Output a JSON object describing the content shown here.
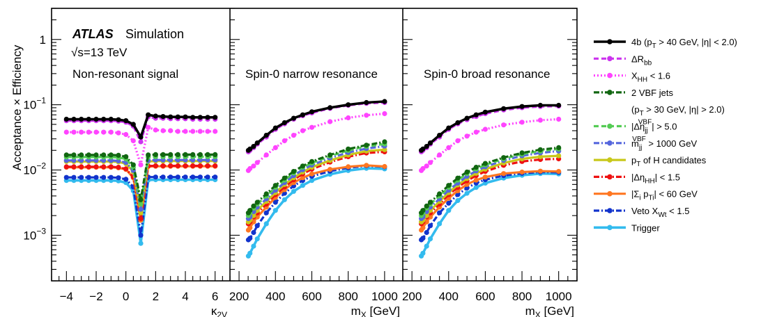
{
  "chart_data": {
    "type": "line",
    "ylabel": "Acceptance × Efficiency",
    "yscale": "log",
    "ylim": [
      0.0002,
      3
    ],
    "y_ticks": [
      {
        "value": 1,
        "label": "1"
      },
      {
        "value": 0.1,
        "label": "10⁻¹"
      },
      {
        "value": 0.01,
        "label": "10⁻²"
      },
      {
        "value": 0.001,
        "label": "10⁻³"
      }
    ],
    "annotations": {
      "atlas": "ATLAS",
      "simulation": "Simulation",
      "energy": "√s=13 TeV"
    },
    "panels": [
      {
        "title": "Non-resonant signal",
        "xlabel": "κ₂ᵥ",
        "xlim": [
          -5,
          7
        ],
        "x_ticks": [
          -4,
          -2,
          0,
          2,
          4,
          6
        ],
        "x_tick_labels": [
          "−4",
          "−2",
          "0",
          "2",
          "4",
          "6"
        ],
        "x": [
          -4,
          -3.5,
          -3,
          -2.5,
          -2,
          -1.5,
          -1,
          -0.5,
          0,
          0.5,
          1,
          1.5,
          2,
          2.5,
          3,
          3.5,
          4,
          4.5,
          5,
          5.5,
          6
        ],
        "series": [
          {
            "key": "4b",
            "values": [
              0.06,
              0.06,
              0.06,
              0.06,
              0.06,
              0.06,
              0.06,
              0.059,
              0.057,
              0.05,
              0.032,
              0.07,
              0.067,
              0.066,
              0.065,
              0.065,
              0.065,
              0.064,
              0.064,
              0.064,
              0.064
            ]
          },
          {
            "key": "drbb",
            "values": [
              0.057,
              0.057,
              0.057,
              0.057,
              0.057,
              0.057,
              0.057,
              0.056,
              0.054,
              0.047,
              0.027,
              0.065,
              0.062,
              0.062,
              0.061,
              0.061,
              0.061,
              0.06,
              0.06,
              0.06,
              0.06
            ]
          },
          {
            "key": "xhh",
            "values": [
              0.038,
              0.038,
              0.038,
              0.038,
              0.038,
              0.038,
              0.038,
              0.037,
              0.035,
              0.028,
              0.012,
              0.045,
              0.041,
              0.04,
              0.04,
              0.039,
              0.039,
              0.039,
              0.039,
              0.039,
              0.039
            ]
          },
          {
            "key": "vbf2",
            "values": [
              0.017,
              0.017,
              0.017,
              0.017,
              0.017,
              0.017,
              0.017,
              0.0168,
              0.016,
              0.012,
              0.0035,
              0.017,
              0.0172,
              0.0172,
              0.0172,
              0.0172,
              0.0172,
              0.0172,
              0.0172,
              0.0172,
              0.0172
            ]
          },
          {
            "key": "detajj",
            "values": [
              0.0158,
              0.0158,
              0.0158,
              0.0158,
              0.0158,
              0.0158,
              0.0158,
              0.0155,
              0.0148,
              0.011,
              0.003,
              0.0158,
              0.016,
              0.016,
              0.016,
              0.016,
              0.016,
              0.016,
              0.016,
              0.016,
              0.016
            ]
          },
          {
            "key": "mjj",
            "values": [
              0.014,
              0.014,
              0.014,
              0.014,
              0.014,
              0.014,
              0.014,
              0.0138,
              0.013,
              0.0098,
              0.0025,
              0.014,
              0.0142,
              0.0142,
              0.0142,
              0.0142,
              0.0142,
              0.0142,
              0.0142,
              0.0142,
              0.0142
            ]
          },
          {
            "key": "pth",
            "values": [
              0.0135,
              0.0135,
              0.0135,
              0.0135,
              0.0135,
              0.0135,
              0.0135,
              0.0133,
              0.0125,
              0.0094,
              0.0022,
              0.0135,
              0.0137,
              0.0137,
              0.0137,
              0.0137,
              0.0137,
              0.0137,
              0.0137,
              0.0137,
              0.0137
            ]
          },
          {
            "key": "detahh",
            "values": [
              0.0112,
              0.0112,
              0.0112,
              0.0112,
              0.0112,
              0.0112,
              0.0112,
              0.011,
              0.0104,
              0.0078,
              0.0018,
              0.0115,
              0.0116,
              0.0116,
              0.0116,
              0.0116,
              0.0116,
              0.0116,
              0.0116,
              0.0116,
              0.0116
            ]
          },
          {
            "key": "sumpt",
            "values": [
              0.011,
              0.011,
              0.011,
              0.011,
              0.011,
              0.011,
              0.011,
              0.0108,
              0.0102,
              0.0076,
              0.0017,
              0.0113,
              0.0114,
              0.0114,
              0.0114,
              0.0114,
              0.0114,
              0.0114,
              0.0114,
              0.0114,
              0.0114
            ]
          },
          {
            "key": "xwt",
            "values": [
              0.0077,
              0.0077,
              0.0077,
              0.0077,
              0.0077,
              0.0077,
              0.0077,
              0.0076,
              0.0072,
              0.0055,
              0.001,
              0.0078,
              0.0078,
              0.0078,
              0.0078,
              0.0078,
              0.0078,
              0.0078,
              0.0078,
              0.0078,
              0.0078
            ]
          },
          {
            "key": "trigger",
            "values": [
              0.0069,
              0.0069,
              0.0069,
              0.0069,
              0.0069,
              0.0069,
              0.0069,
              0.0068,
              0.0064,
              0.0048,
              0.00075,
              0.007,
              0.0071,
              0.0071,
              0.0071,
              0.0071,
              0.0071,
              0.0071,
              0.0071,
              0.0071,
              0.0071
            ]
          }
        ]
      },
      {
        "title": "Spin-0 narrow resonance",
        "xlabel": "mₓ [GeV]",
        "xlim": [
          150,
          1100
        ],
        "x_ticks": [
          200,
          400,
          600,
          800,
          1000
        ],
        "x_tick_labels": [
          "200",
          "400",
          "600",
          "800",
          "1000"
        ],
        "x": [
          251,
          260,
          280,
          300,
          350,
          400,
          450,
          500,
          550,
          600,
          700,
          800,
          900,
          1000
        ],
        "series": [
          {
            "key": "4b",
            "values": [
              0.02,
              0.021,
              0.023,
              0.026,
              0.034,
              0.044,
              0.053,
              0.062,
              0.07,
              0.078,
              0.09,
              0.1,
              0.108,
              0.112
            ]
          },
          {
            "key": "drbb",
            "values": [
              0.019,
              0.02,
              0.022,
              0.025,
              0.032,
              0.042,
              0.051,
              0.06,
              0.068,
              0.075,
              0.088,
              0.098,
              0.105,
              0.108
            ]
          },
          {
            "key": "xhh",
            "values": [
              0.0098,
              0.0105,
              0.0115,
              0.013,
              0.017,
              0.022,
              0.028,
              0.034,
              0.04,
              0.045,
              0.055,
              0.063,
              0.069,
              0.073
            ]
          },
          {
            "key": "vbf2",
            "values": [
              0.0022,
              0.0024,
              0.0028,
              0.0032,
              0.0043,
              0.0058,
              0.0075,
              0.0095,
              0.0115,
              0.0135,
              0.017,
              0.021,
              0.024,
              0.027
            ]
          },
          {
            "key": "detajj",
            "values": [
              0.002,
              0.0022,
              0.0026,
              0.003,
              0.004,
              0.0054,
              0.007,
              0.009,
              0.011,
              0.0128,
              0.0163,
              0.02,
              0.023,
              0.025
            ]
          },
          {
            "key": "mjj",
            "values": [
              0.0018,
              0.0019,
              0.0023,
              0.0027,
              0.0036,
              0.0049,
              0.0064,
              0.0082,
              0.0101,
              0.0119,
              0.0153,
              0.0185,
              0.0213,
              0.0232
            ]
          },
          {
            "key": "pth",
            "values": [
              0.0016,
              0.0017,
              0.002,
              0.0024,
              0.0033,
              0.0045,
              0.006,
              0.0076,
              0.0093,
              0.011,
              0.014,
              0.017,
              0.0195,
              0.0205
            ]
          },
          {
            "key": "detahh",
            "values": [
              0.0015,
              0.0016,
              0.0019,
              0.0022,
              0.003,
              0.0042,
              0.0055,
              0.0071,
              0.0087,
              0.0103,
              0.0132,
              0.016,
              0.0182,
              0.019
            ]
          },
          {
            "key": "sumpt",
            "values": [
              0.0012,
              0.0013,
              0.0016,
              0.0019,
              0.0027,
              0.0038,
              0.005,
              0.0064,
              0.0076,
              0.0087,
              0.0102,
              0.0112,
              0.0118,
              0.0113
            ]
          },
          {
            "key": "xwt",
            "values": [
              0.00085,
              0.0009,
              0.0011,
              0.0014,
              0.0022,
              0.0032,
              0.0044,
              0.0057,
              0.0069,
              0.008,
              0.0096,
              0.0108,
              0.0116,
              0.0112
            ]
          },
          {
            "key": "trigger",
            "values": [
              0.00048,
              0.00053,
              0.00068,
              0.00088,
              0.0015,
              0.0024,
              0.0035,
              0.0047,
              0.0058,
              0.0069,
              0.0086,
              0.0098,
              0.0106,
              0.0104
            ]
          }
        ]
      },
      {
        "title": "Spin-0 broad resonance",
        "xlabel": "mₓ [GeV]",
        "xlim": [
          150,
          1100
        ],
        "x_ticks": [
          200,
          400,
          600,
          800,
          1000
        ],
        "x_tick_labels": [
          "200",
          "400",
          "600",
          "800",
          "1000"
        ],
        "x": [
          251,
          260,
          280,
          300,
          350,
          400,
          450,
          500,
          550,
          600,
          700,
          800,
          900,
          1000
        ],
        "series": [
          {
            "key": "4b",
            "values": [
              0.02,
              0.021,
              0.023,
              0.026,
              0.034,
              0.044,
              0.053,
              0.062,
              0.07,
              0.077,
              0.087,
              0.094,
              0.098,
              0.098
            ]
          },
          {
            "key": "drbb",
            "values": [
              0.019,
              0.02,
              0.022,
              0.025,
              0.032,
              0.042,
              0.051,
              0.059,
              0.066,
              0.073,
              0.083,
              0.09,
              0.094,
              0.095
            ]
          },
          {
            "key": "xhh",
            "values": [
              0.0098,
              0.0105,
              0.0115,
              0.013,
              0.017,
              0.022,
              0.028,
              0.033,
              0.038,
              0.042,
              0.049,
              0.054,
              0.058,
              0.06
            ]
          },
          {
            "key": "vbf2",
            "values": [
              0.0022,
              0.0024,
              0.0028,
              0.0032,
              0.0043,
              0.0058,
              0.0075,
              0.0093,
              0.011,
              0.0126,
              0.0155,
              0.0183,
              0.0205,
              0.022
            ]
          },
          {
            "key": "detajj",
            "values": [
              0.002,
              0.0022,
              0.0026,
              0.003,
              0.004,
              0.0054,
              0.007,
              0.0088,
              0.0104,
              0.012,
              0.0148,
              0.0175,
              0.0195,
              0.021
            ]
          },
          {
            "key": "mjj",
            "values": [
              0.0018,
              0.0019,
              0.0023,
              0.0027,
              0.0036,
              0.0049,
              0.0063,
              0.008,
              0.0097,
              0.0112,
              0.014,
              0.0165,
              0.0183,
              0.0195
            ]
          },
          {
            "key": "pth",
            "values": [
              0.0016,
              0.0017,
              0.002,
              0.0024,
              0.0033,
              0.0045,
              0.0059,
              0.0074,
              0.0089,
              0.0103,
              0.0128,
              0.0148,
              0.016,
              0.0165
            ]
          },
          {
            "key": "detahh",
            "values": [
              0.0015,
              0.0016,
              0.0019,
              0.0022,
              0.003,
              0.0042,
              0.0054,
              0.0068,
              0.0082,
              0.0095,
              0.0118,
              0.0135,
              0.0145,
              0.0148
            ]
          },
          {
            "key": "sumpt",
            "values": [
              0.0012,
              0.0013,
              0.0016,
              0.0019,
              0.0027,
              0.0037,
              0.0048,
              0.006,
              0.007,
              0.0078,
              0.0088,
              0.0093,
              0.0096,
              0.0095
            ]
          },
          {
            "key": "xwt",
            "values": [
              0.00085,
              0.0009,
              0.0011,
              0.0014,
              0.0022,
              0.0031,
              0.0042,
              0.0053,
              0.0063,
              0.0071,
              0.0082,
              0.0089,
              0.0093,
              0.0092
            ]
          },
          {
            "key": "trigger",
            "values": [
              0.00048,
              0.00053,
              0.00068,
              0.00088,
              0.0015,
              0.0024,
              0.0034,
              0.0044,
              0.0054,
              0.0063,
              0.0075,
              0.0083,
              0.0088,
              0.0087
            ]
          }
        ]
      }
    ],
    "legend": {
      "placement": "right",
      "items": [
        {
          "key": "4b",
          "label": "4b (p_T > 40 GeV, |η| < 2.0)",
          "color": "#000000",
          "style": "solid-thick"
        },
        {
          "key": "drbb",
          "label": "ΔR_bb",
          "color": "#cc33ee",
          "style": "dashed"
        },
        {
          "key": "xhh",
          "label": "X_HH < 1.6",
          "color": "#ff44ff",
          "style": "dotted"
        },
        {
          "key": "vbf2",
          "label": "2 VBF jets",
          "color": "#116611",
          "style": "dashdot"
        },
        {
          "key": "vbf2_note",
          "label": "(p_T > 30 GeV, |η| > 2.0)",
          "color": "",
          "style": "none"
        },
        {
          "key": "detajj",
          "label": "|Δη_jj^VBF| > 5.0",
          "color": "#55cc55",
          "style": "dashed"
        },
        {
          "key": "mjj",
          "label": "m_jj^VBF > 1000 GeV",
          "color": "#5566dd",
          "style": "dashdot"
        },
        {
          "key": "pth",
          "label": "p_T of H candidates",
          "color": "#c8c81a",
          "style": "solid"
        },
        {
          "key": "detahh",
          "label": "|Δη_HH| < 1.5",
          "color": "#ee1111",
          "style": "dashdot"
        },
        {
          "key": "sumpt",
          "label": "|Σ_i p_Ti| < 60 GeV",
          "color": "#ff7722",
          "style": "solid"
        },
        {
          "key": "xwt",
          "label": "Veto X_Wt < 1.5",
          "color": "#1133cc",
          "style": "dashdot"
        },
        {
          "key": "trigger",
          "label": "Trigger",
          "color": "#33bbee",
          "style": "solid-thick"
        }
      ]
    }
  }
}
